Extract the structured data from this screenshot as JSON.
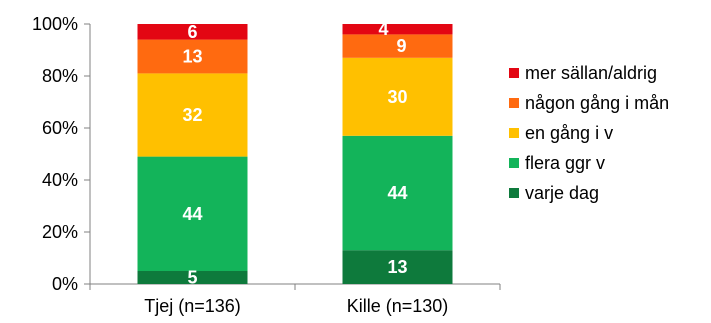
{
  "chart_data": {
    "type": "bar",
    "stacked": true,
    "categories": [
      "Tjej (n=136)",
      "Kille (n=130)"
    ],
    "series": [
      {
        "name": "varje dag",
        "values": [
          5,
          13
        ],
        "color": "#0e7a3c"
      },
      {
        "name": "flera ggr v",
        "values": [
          44,
          44
        ],
        "color": "#13b45a"
      },
      {
        "name": "en gång i v",
        "values": [
          32,
          30
        ],
        "color": "#ffc000"
      },
      {
        "name": "någon gång i mån",
        "values": [
          13,
          9
        ],
        "color": "#ff6a10"
      },
      {
        "name": "mer sällan/aldrig",
        "values": [
          6,
          4
        ],
        "color": "#e30613"
      }
    ],
    "y_ticks": [
      "0%",
      "20%",
      "40%",
      "60%",
      "80%",
      "100%"
    ],
    "ylim": [
      0,
      100
    ],
    "grid": false,
    "legend_position": "right"
  }
}
